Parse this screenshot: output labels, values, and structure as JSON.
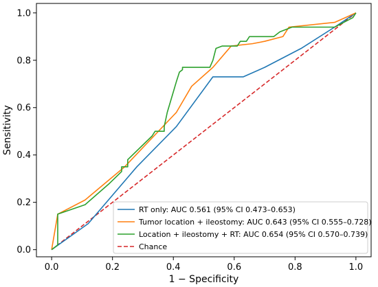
{
  "chart_data": {
    "type": "line",
    "title": "",
    "xlabel": "1 − Specificity",
    "ylabel": "Sensitivity",
    "xlim": [
      -0.05,
      1.05
    ],
    "ylim": [
      -0.03,
      1.04
    ],
    "xticks": [
      "0.0",
      "0.2",
      "0.4",
      "0.6",
      "0.8",
      "1.0"
    ],
    "yticks": [
      "0.0",
      "0.2",
      "0.4",
      "0.6",
      "0.8",
      "1.0"
    ],
    "grid": false,
    "legend_position": "lower-right",
    "series": [
      {
        "name": "RT only: AUC 0.561 (95% CI 0.473–0.653)",
        "color": "#1f77b4",
        "style": "solid",
        "x": [
          0.0,
          0.12,
          0.28,
          0.41,
          0.53,
          0.63,
          0.7,
          0.82,
          0.93,
          1.0
        ],
        "y": [
          0.0,
          0.11,
          0.35,
          0.52,
          0.73,
          0.73,
          0.77,
          0.85,
          0.94,
          1.0
        ]
      },
      {
        "name": "Tumor location + ileostomy: AUC 0.643 (95% CI 0.555–0.728)",
        "color": "#ff7f0e",
        "style": "solid",
        "x": [
          0.0,
          0.02,
          0.11,
          0.24,
          0.41,
          0.46,
          0.53,
          0.59,
          0.66,
          0.7,
          0.76,
          0.78,
          0.93,
          1.0
        ],
        "y": [
          0.0,
          0.15,
          0.21,
          0.35,
          0.58,
          0.69,
          0.77,
          0.86,
          0.87,
          0.88,
          0.9,
          0.94,
          0.96,
          1.0
        ]
      },
      {
        "name": "Location + ileostomy + RT: AUC 0.654 (95% CI 0.570–0.739)",
        "color": "#2ca02c",
        "style": "solid",
        "x": [
          0.0,
          0.02,
          0.02,
          0.11,
          0.19,
          0.23,
          0.23,
          0.25,
          0.25,
          0.33,
          0.34,
          0.35,
          0.37,
          0.37,
          0.38,
          0.41,
          0.42,
          0.43,
          0.43,
          0.52,
          0.53,
          0.54,
          0.56,
          0.58,
          0.61,
          0.62,
          0.64,
          0.65,
          0.73,
          0.75,
          0.79,
          0.93,
          0.99,
          1.0
        ],
        "y": [
          0.0,
          0.02,
          0.15,
          0.19,
          0.28,
          0.33,
          0.35,
          0.35,
          0.38,
          0.48,
          0.5,
          0.5,
          0.5,
          0.52,
          0.58,
          0.71,
          0.75,
          0.76,
          0.77,
          0.77,
          0.8,
          0.85,
          0.86,
          0.86,
          0.86,
          0.88,
          0.88,
          0.9,
          0.9,
          0.92,
          0.94,
          0.94,
          0.98,
          1.0
        ]
      },
      {
        "name": "Chance",
        "color": "#d62728",
        "style": "dashed",
        "x": [
          0.0,
          1.0
        ],
        "y": [
          0.0,
          1.0
        ]
      }
    ]
  }
}
